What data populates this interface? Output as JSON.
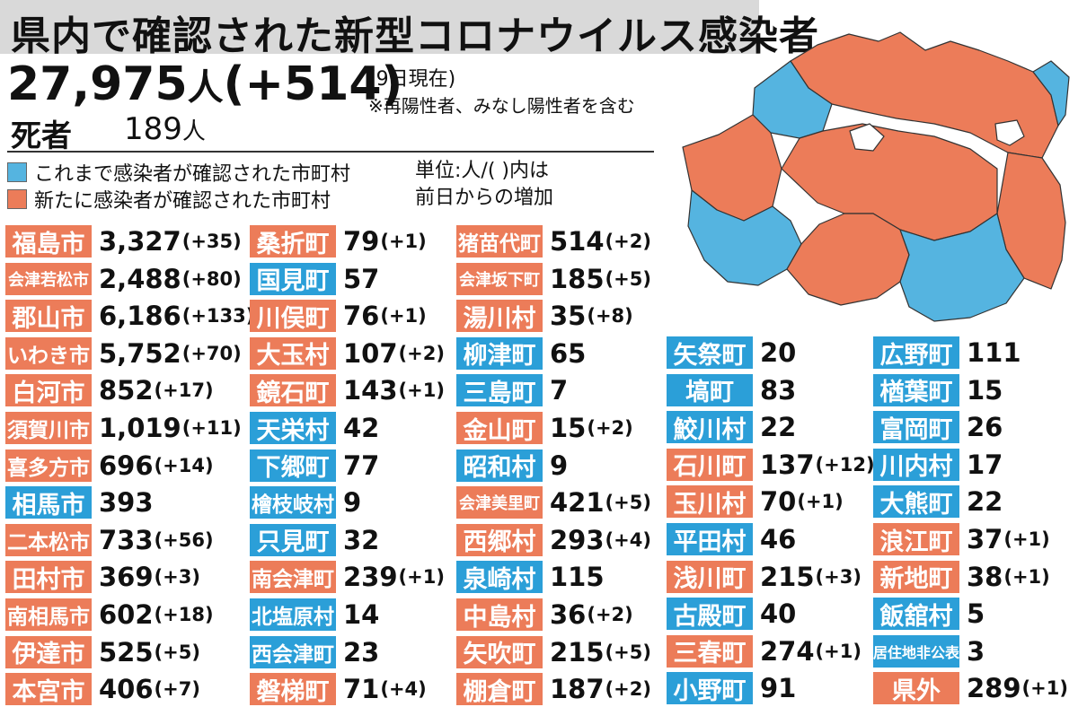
{
  "header": {
    "title": "県内で確認された新型コロナウイルス感染者",
    "total": "27,975",
    "total_unit": "人",
    "total_change": "(+514)",
    "as_of": "(9日現在)",
    "note": "※再陽性者、みなし陽性者を含む",
    "death_label": "死者",
    "death_value": "189",
    "death_unit": "人"
  },
  "legend": {
    "confirmed_before": "これまで感染者が確認された市町村",
    "new_today": "新たに感染者が確認された市町村",
    "unit_line1": "単位:人/(  )内は",
    "unit_line2": "前日からの増加",
    "color_confirmed_before": "#55b4e0",
    "color_new_today": "#ec7c59"
  },
  "columns": [
    [
      {
        "name": "福島市",
        "value": "3,327",
        "change": "(+35)",
        "new": true
      },
      {
        "name": "会津若松市",
        "value": "2,488",
        "change": "(+80)",
        "new": true
      },
      {
        "name": "郡山市",
        "value": "6,186",
        "change": "(+133)",
        "new": true
      },
      {
        "name": "いわき市",
        "value": "5,752",
        "change": "(+70)",
        "new": true
      },
      {
        "name": "白河市",
        "value": "852",
        "change": "(+17)",
        "new": true
      },
      {
        "name": "須賀川市",
        "value": "1,019",
        "change": "(+11)",
        "new": true
      },
      {
        "name": "喜多方市",
        "value": "696",
        "change": "(+14)",
        "new": true
      },
      {
        "name": "相馬市",
        "value": "393",
        "change": "",
        "new": false
      },
      {
        "name": "二本松市",
        "value": "733",
        "change": "(+56)",
        "new": true
      },
      {
        "name": "田村市",
        "value": "369",
        "change": "(+3)",
        "new": true
      },
      {
        "name": "南相馬市",
        "value": "602",
        "change": "(+18)",
        "new": true
      },
      {
        "name": "伊達市",
        "value": "525",
        "change": "(+5)",
        "new": true
      },
      {
        "name": "本宮市",
        "value": "406",
        "change": "(+7)",
        "new": true
      }
    ],
    [
      {
        "name": "桑折町",
        "value": "79",
        "change": "(+1)",
        "new": true
      },
      {
        "name": "国見町",
        "value": "57",
        "change": "",
        "new": false
      },
      {
        "name": "川俣町",
        "value": "76",
        "change": "(+1)",
        "new": true
      },
      {
        "name": "大玉村",
        "value": "107",
        "change": "(+2)",
        "new": true
      },
      {
        "name": "鏡石町",
        "value": "143",
        "change": "(+1)",
        "new": true
      },
      {
        "name": "天栄村",
        "value": "42",
        "change": "",
        "new": false
      },
      {
        "name": "下郷町",
        "value": "77",
        "change": "",
        "new": false
      },
      {
        "name": "檜枝岐村",
        "value": "9",
        "change": "",
        "new": false
      },
      {
        "name": "只見町",
        "value": "32",
        "change": "",
        "new": false
      },
      {
        "name": "南会津町",
        "value": "239",
        "change": "(+1)",
        "new": true
      },
      {
        "name": "北塩原村",
        "value": "14",
        "change": "",
        "new": false
      },
      {
        "name": "西会津町",
        "value": "23",
        "change": "",
        "new": false
      },
      {
        "name": "磐梯町",
        "value": "71",
        "change": "(+4)",
        "new": true
      }
    ],
    [
      {
        "name": "猪苗代町",
        "value": "514",
        "change": "(+2)",
        "new": true
      },
      {
        "name": "会津坂下町",
        "value": "185",
        "change": "(+5)",
        "new": true
      },
      {
        "name": "湯川村",
        "value": "35",
        "change": "(+8)",
        "new": true
      },
      {
        "name": "柳津町",
        "value": "65",
        "change": "",
        "new": false
      },
      {
        "name": "三島町",
        "value": "7",
        "change": "",
        "new": false
      },
      {
        "name": "金山町",
        "value": "15",
        "change": "(+2)",
        "new": true
      },
      {
        "name": "昭和村",
        "value": "9",
        "change": "",
        "new": false
      },
      {
        "name": "会津美里町",
        "value": "421",
        "change": "(+5)",
        "new": true
      },
      {
        "name": "西郷村",
        "value": "293",
        "change": "(+4)",
        "new": true
      },
      {
        "name": "泉崎村",
        "value": "115",
        "change": "",
        "new": false
      },
      {
        "name": "中島村",
        "value": "36",
        "change": "(+2)",
        "new": true
      },
      {
        "name": "矢吹町",
        "value": "215",
        "change": "(+5)",
        "new": true
      },
      {
        "name": "棚倉町",
        "value": "187",
        "change": "(+2)",
        "new": true
      }
    ],
    [
      {
        "name": "矢祭町",
        "value": "20",
        "change": "",
        "new": false
      },
      {
        "name": "塙町",
        "value": "83",
        "change": "",
        "new": false
      },
      {
        "name": "鮫川村",
        "value": "22",
        "change": "",
        "new": false
      },
      {
        "name": "石川町",
        "value": "137",
        "change": "(+12)",
        "new": true
      },
      {
        "name": "玉川村",
        "value": "70",
        "change": "(+1)",
        "new": true
      },
      {
        "name": "平田村",
        "value": "46",
        "change": "",
        "new": false
      },
      {
        "name": "浅川町",
        "value": "215",
        "change": "(+3)",
        "new": true
      },
      {
        "name": "古殿町",
        "value": "40",
        "change": "",
        "new": false
      },
      {
        "name": "三春町",
        "value": "274",
        "change": "(+1)",
        "new": true
      },
      {
        "name": "小野町",
        "value": "91",
        "change": "",
        "new": false
      }
    ],
    [
      {
        "name": "広野町",
        "value": "111",
        "change": "",
        "new": false
      },
      {
        "name": "楢葉町",
        "value": "15",
        "change": "",
        "new": false
      },
      {
        "name": "富岡町",
        "value": "26",
        "change": "",
        "new": false
      },
      {
        "name": "川内村",
        "value": "17",
        "change": "",
        "new": false
      },
      {
        "name": "大熊町",
        "value": "22",
        "change": "",
        "new": false
      },
      {
        "name": "浪江町",
        "value": "37",
        "change": "(+1)",
        "new": true
      },
      {
        "name": "新地町",
        "value": "38",
        "change": "(+1)",
        "new": true
      },
      {
        "name": "飯舘村",
        "value": "5",
        "change": "",
        "new": false
      },
      {
        "name": "居住地非公表",
        "value": "3",
        "change": "",
        "new": false
      },
      {
        "name": "県外",
        "value": "289",
        "change": "(+1)",
        "new": true
      }
    ]
  ]
}
